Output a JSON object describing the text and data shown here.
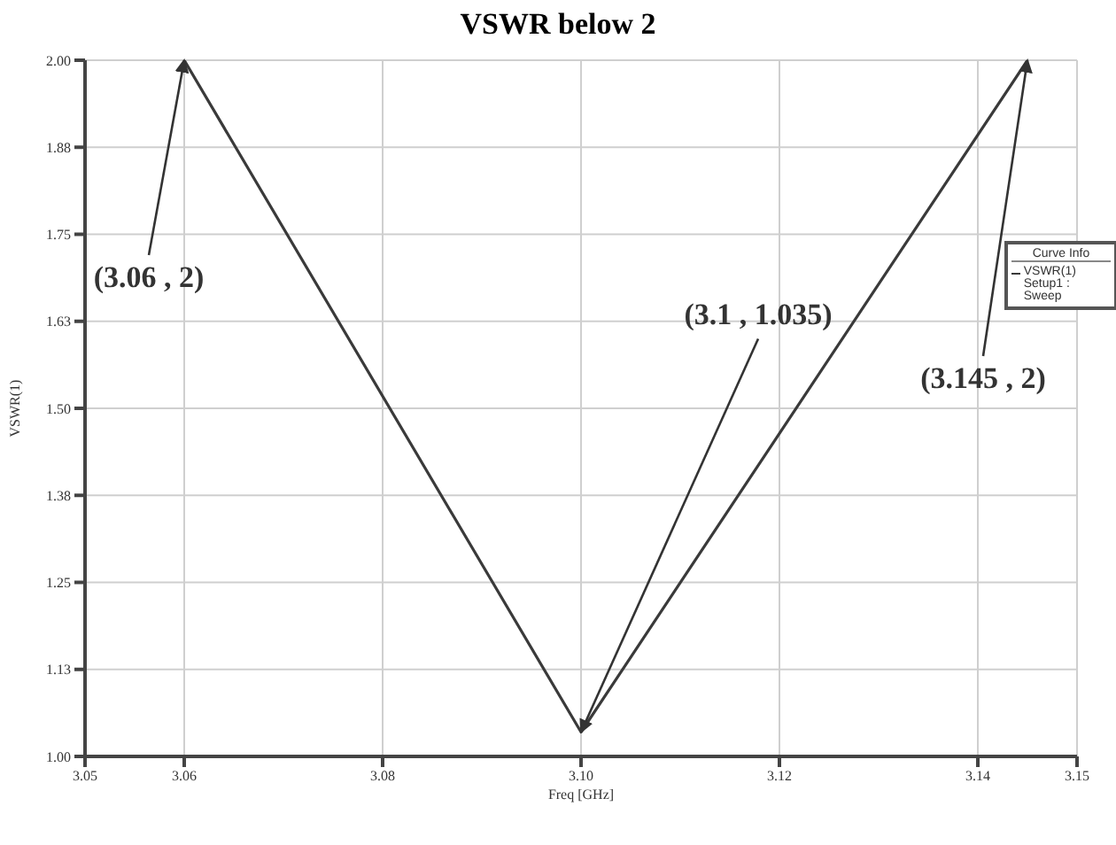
{
  "chart_data": {
    "type": "line",
    "title": "VSWR below 2",
    "xlabel": "Freq [GHz]",
    "ylabel": "VSWR(1)",
    "legend_title": "Curve Info",
    "x": [
      3.06,
      3.1,
      3.145
    ],
    "series": [
      {
        "name": "VSWR(1) Setup1 : Sweep",
        "color": "#3a3a3a",
        "values": [
          2,
          1.035,
          2
        ]
      }
    ],
    "xlim": [
      3.05,
      3.15
    ],
    "xticks": [
      3.05,
      3.06,
      3.08,
      {
        "value": 3.1,
        "label": "3.10"
      },
      3.12,
      3.14,
      3.15
    ],
    "ylim": [
      1,
      2
    ],
    "yticks": [
      {
        "value": 1,
        "label": "1.00"
      },
      {
        "value": 1.125,
        "label": "1.13"
      },
      1.25,
      {
        "value": 1.375,
        "label": "1.38"
      },
      {
        "value": 1.5,
        "label": "1.50"
      },
      {
        "value": 1.625,
        "label": "1.63"
      },
      1.75,
      {
        "value": 1.875,
        "label": "1.88"
      },
      {
        "value": 2,
        "label": "2.00"
      }
    ],
    "grid": true,
    "legend": "right",
    "marker": "none",
    "line_style": "solid",
    "annotations": [
      {
        "text": "(3.06 , 2)",
        "x": 3.06,
        "y": 2
      },
      {
        "text": "(3.1 , 1.035)",
        "x": 3.1,
        "y": 1.035
      },
      {
        "text": "(3.145 , 2)",
        "x": 3.145,
        "y": 2
      }
    ]
  }
}
